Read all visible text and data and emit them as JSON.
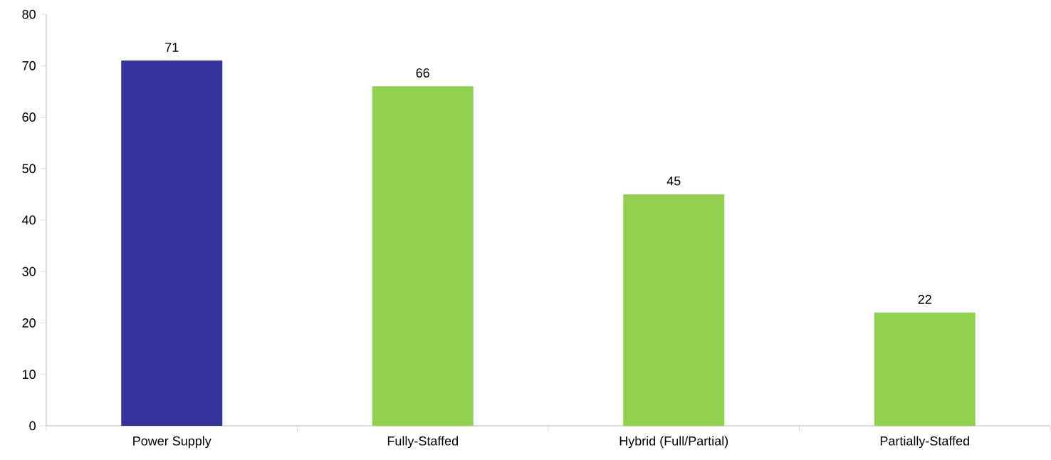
{
  "chart_data": {
    "type": "bar",
    "categories": [
      "Power Supply",
      "Fully-Staffed",
      "Hybrid (Full/Partial)",
      "Partially-Staffed"
    ],
    "values": [
      71,
      66,
      45,
      22
    ],
    "colors": [
      "#333399",
      "#92d050",
      "#92d050",
      "#92d050"
    ],
    "ylim": [
      0,
      80
    ],
    "yticks": [
      0,
      10,
      20,
      30,
      40,
      50,
      60,
      70,
      80
    ],
    "data_labels": true,
    "grid": false
  }
}
